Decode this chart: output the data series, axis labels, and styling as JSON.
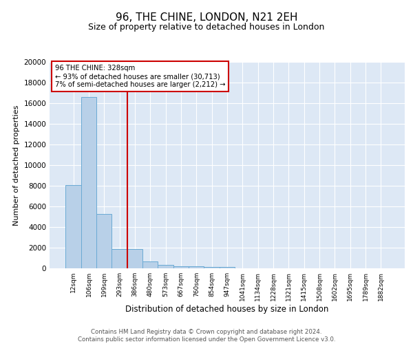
{
  "title1": "96, THE CHINE, LONDON, N21 2EH",
  "title2": "Size of property relative to detached houses in London",
  "xlabel": "Distribution of detached houses by size in London",
  "ylabel": "Number of detached properties",
  "bar_labels": [
    "12sqm",
    "106sqm",
    "199sqm",
    "293sqm",
    "386sqm",
    "480sqm",
    "573sqm",
    "667sqm",
    "760sqm",
    "854sqm",
    "947sqm",
    "1041sqm",
    "1134sqm",
    "1228sqm",
    "1321sqm",
    "1415sqm",
    "1508sqm",
    "1602sqm",
    "1695sqm",
    "1789sqm",
    "1882sqm"
  ],
  "bar_values": [
    8100,
    16600,
    5300,
    1850,
    1850,
    700,
    310,
    230,
    200,
    150,
    130,
    0,
    0,
    0,
    0,
    0,
    0,
    0,
    0,
    0,
    0
  ],
  "bar_color": "#b8d0e8",
  "bar_edge_color": "#6aaad4",
  "vline_x": 3.5,
  "vline_color": "#cc0000",
  "annotation_text": "96 THE CHINE: 328sqm\n← 93% of detached houses are smaller (30,713)\n7% of semi-detached houses are larger (2,212) →",
  "annotation_box_color": "#ffffff",
  "annotation_box_edge": "#cc0000",
  "ylim": [
    0,
    20000
  ],
  "yticks": [
    0,
    2000,
    4000,
    6000,
    8000,
    10000,
    12000,
    14000,
    16000,
    18000,
    20000
  ],
  "background_color": "#dde8f5",
  "footer_text": "Contains HM Land Registry data © Crown copyright and database right 2024.\nContains public sector information licensed under the Open Government Licence v3.0.",
  "title1_fontsize": 11,
  "title2_fontsize": 9
}
